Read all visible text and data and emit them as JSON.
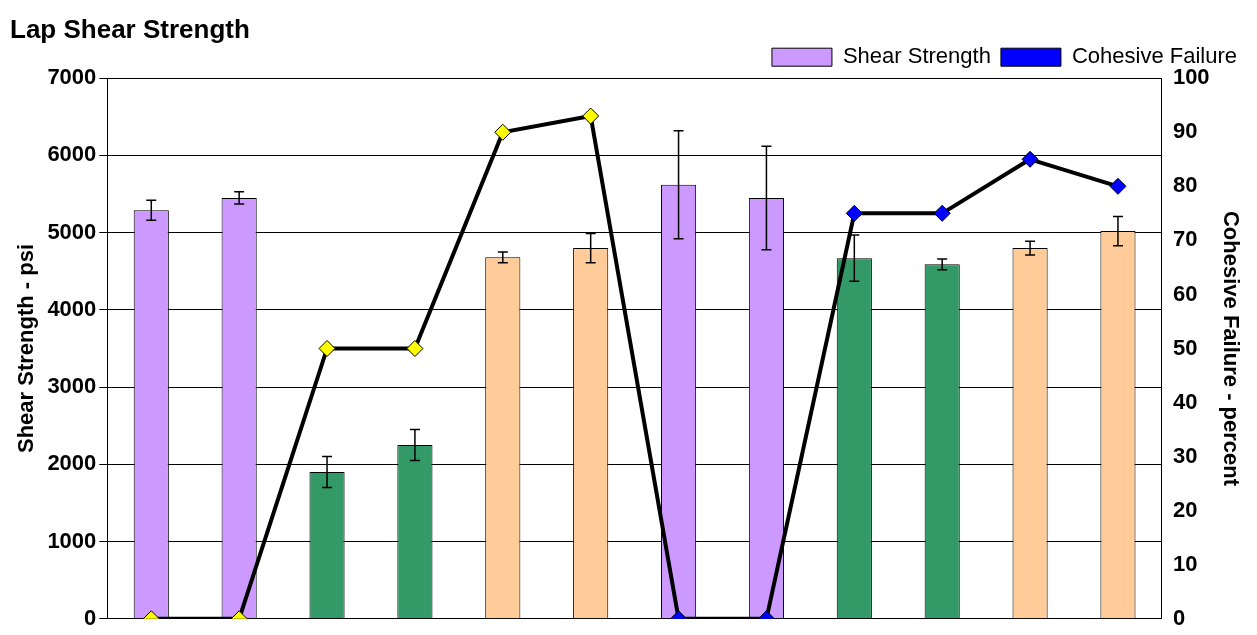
{
  "chart_data": {
    "type": "bar",
    "title": "Lap Shear Strength",
    "ylabel": "Shear Strength - psi",
    "y2label": "Cohesive Failure - percent",
    "categories": [
      null,
      null,
      null,
      null,
      null,
      null,
      null,
      null,
      null,
      null,
      null,
      null
    ],
    "series": [
      {
        "name": "Shear Strength",
        "colors": [
          "#cc99ff",
          "#cc99ff",
          "#339966",
          "#339966",
          "#ffcc99",
          "#ffcc99",
          "#cc99ff",
          "#cc99ff",
          "#339966",
          "#339966",
          "#ffcc99",
          "#ffcc99"
        ],
        "values": [
          5290,
          5450,
          1900,
          2250,
          4680,
          4800,
          5620,
          5450,
          4670,
          4590,
          4800,
          5020
        ],
        "errors": [
          130,
          80,
          200,
          200,
          70,
          190,
          700,
          670,
          300,
          70,
          90,
          190
        ]
      },
      {
        "name": "Cohesive Failure",
        "type": "line",
        "axis": "y2",
        "color": "#000000",
        "colors": [
          "#ffff00",
          "#ffff00",
          "#ffff00",
          "#ffff00",
          "#ffff00",
          "#ffff00",
          "#0000ff",
          "#0000ff",
          "#0000ff",
          "#0000ff",
          "#0000ff",
          "#0000ff"
        ],
        "values": [
          0,
          0,
          50,
          50,
          90,
          93,
          0,
          0,
          75,
          75,
          85,
          80
        ]
      }
    ],
    "ylim": [
      0,
      7000
    ],
    "yticks": [
      0,
      1000,
      2000,
      3000,
      4000,
      5000,
      6000,
      7000
    ],
    "y2lim": [
      0,
      100
    ],
    "y2ticks": [
      0,
      10,
      20,
      30,
      40,
      50,
      60,
      70,
      80,
      90,
      100
    ],
    "grid": "y",
    "legend": "top right",
    "marker": "diamond",
    "tick_labels": "y"
  }
}
